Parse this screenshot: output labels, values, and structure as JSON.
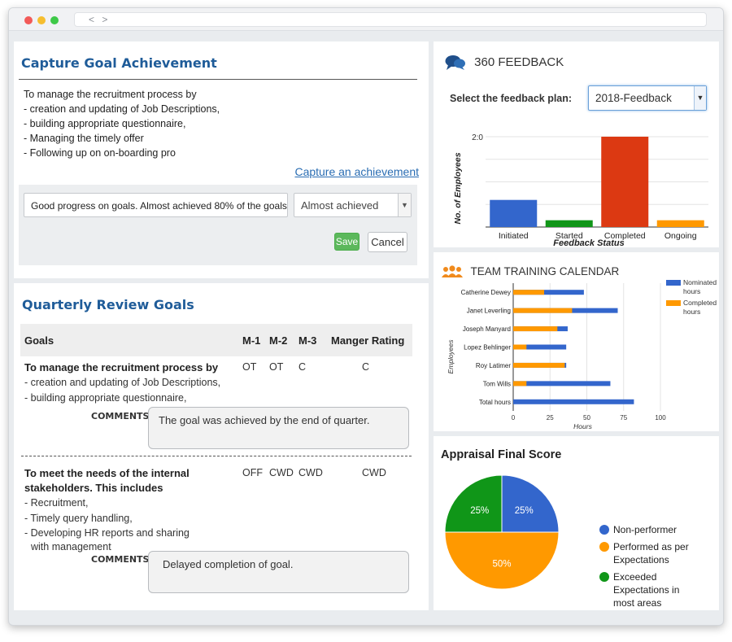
{
  "browser": {
    "nav": "< >"
  },
  "goal_panel": {
    "title": "Capture Goal Achievement",
    "goal_lines": [
      "To manage the recruitment process by",
      "- creation and updating of Job Descriptions,",
      "- building appropriate questionnaire,",
      "- Managing the timely offer",
      "- Following up on on-boarding pro"
    ],
    "capture_link": "Capture an achievement",
    "comment_value": "Good progress on goals. Almost achieved 80% of the goals.",
    "status_value": "Almost achieved",
    "save_label": "Save",
    "cancel_label": "Cancel"
  },
  "quarterly": {
    "title": "Quarterly Review Goals",
    "headers": {
      "goals": "Goals",
      "m1": "M-1",
      "m2": "M-2",
      "m3": "M-3",
      "rating": "Manger Rating"
    },
    "comments_label": "COMMENTS",
    "rows": [
      {
        "title": "To manage the recruitment process by",
        "sub": [
          "- creation and updating of Job Descriptions,",
          "- building appropriate questionnaire,"
        ],
        "m1": "OT",
        "m2": "OT",
        "m3": "C",
        "rating": "C",
        "comment": "The goal was achieved by the end of quarter."
      },
      {
        "title": "To meet the needs of the internal stakeholders. This includes",
        "sub": [
          "- Recruitment,",
          "- Timely query handling,",
          "- Developing HR reports and sharing",
          "with management"
        ],
        "m1": "OFF",
        "m2": "CWD",
        "m3": "CWD",
        "rating": "CWD",
        "comment": "Delayed completion of goal."
      }
    ]
  },
  "feedback": {
    "title": "360 FEEDBACK",
    "plan_label": "Select the feedback plan:",
    "plan_value": "2018-Feedback",
    "chart_data": {
      "type": "bar",
      "categories": [
        "Initiated",
        "Started",
        "Completed",
        "Ongoing"
      ],
      "values": [
        6,
        1.5,
        20,
        1.5
      ],
      "colors": [
        "#3366cc",
        "#109618",
        "#dc3912",
        "#ff9900"
      ],
      "xlabel": "Feedback Status",
      "ylabel": "No. of Employees",
      "ylim": [
        0,
        20
      ],
      "ytick_top": "2:0",
      "grid": true
    }
  },
  "training": {
    "title": "TEAM TRAINING CALENDAR",
    "chart_data": {
      "type": "bar",
      "orientation": "horizontal",
      "categories": [
        "Catherine Dewey",
        "Janet Leverling",
        "Joseph Manyard",
        "Lopez Behlinger",
        "Roy Latimer",
        "Tom Wills",
        "Total hours"
      ],
      "series": [
        {
          "name": "Nominated hours",
          "values": [
            48,
            71,
            37,
            36,
            36,
            66,
            82
          ],
          "color": "#3366cc"
        },
        {
          "name": "Completed hours",
          "values": [
            21,
            40,
            30,
            9,
            35,
            9,
            0
          ],
          "color": "#ff9900"
        }
      ],
      "xticks": [
        "0",
        "25",
        "50",
        "75",
        "100"
      ],
      "xlim": [
        0,
        100
      ],
      "xlabel": "Hours",
      "ylabel": "Employees",
      "legend": "right"
    }
  },
  "appraisal": {
    "title": "Appraisal Final Score",
    "chart_data": {
      "type": "pie",
      "labels": [
        "Non-performer",
        "Performed as per Expectations",
        "Exceeded Expectations in most areas"
      ],
      "values": [
        25,
        50,
        25
      ],
      "value_labels": [
        "25%",
        "50%",
        "25%"
      ],
      "colors": [
        "#3366cc",
        "#ff9900",
        "#109618"
      ],
      "legend_lines": [
        [
          "Non-performer"
        ],
        [
          "Performed as per",
          "Expectations"
        ],
        [
          "Exceeded",
          "Expectations in",
          "most areas"
        ]
      ],
      "legend": "right"
    }
  }
}
